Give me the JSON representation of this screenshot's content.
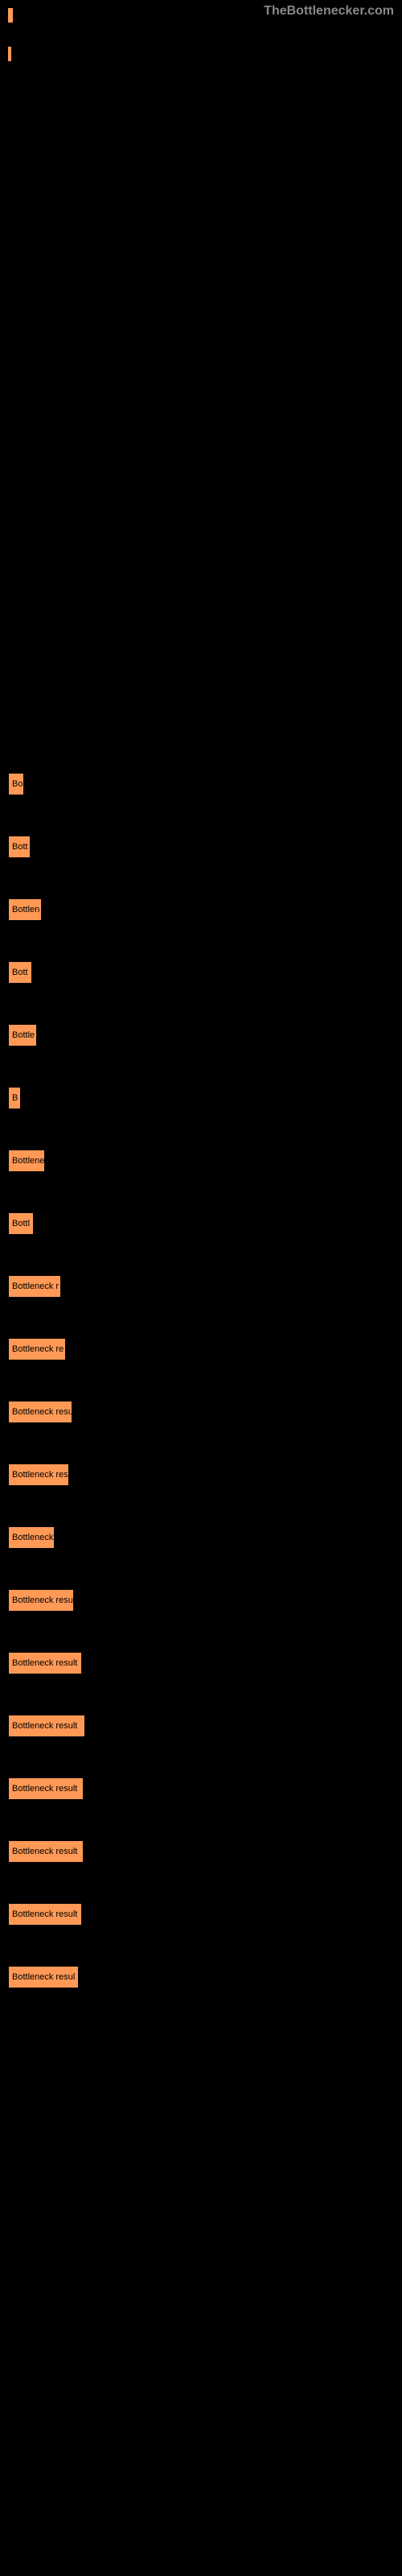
{
  "watermark": "TheBottlenecker.com",
  "top_bars": {
    "bar1_width": 6,
    "bar2_width": 4,
    "color": "#ff9955"
  },
  "chart": {
    "type": "bar",
    "orientation": "horizontal",
    "bar_color": "#ff9955",
    "text_color": "#000000",
    "background": "#000000",
    "bars": [
      {
        "label": "Bo",
        "width": 20
      },
      {
        "label": "Bott",
        "width": 28
      },
      {
        "label": "Bottlen",
        "width": 42
      },
      {
        "label": "Bott",
        "width": 30
      },
      {
        "label": "Bottle",
        "width": 36
      },
      {
        "label": "B",
        "width": 16
      },
      {
        "label": "Bottlene",
        "width": 46
      },
      {
        "label": "Bottl",
        "width": 32
      },
      {
        "label": "Bottleneck r",
        "width": 66
      },
      {
        "label": "Bottleneck re",
        "width": 72
      },
      {
        "label": "Bottleneck resu",
        "width": 80
      },
      {
        "label": "Bottleneck res",
        "width": 76
      },
      {
        "label": "Bottleneck",
        "width": 58
      },
      {
        "label": "Bottleneck resu",
        "width": 82
      },
      {
        "label": "Bottleneck result",
        "width": 92
      },
      {
        "label": "Bottleneck result",
        "width": 96
      },
      {
        "label": "Bottleneck result",
        "width": 94
      },
      {
        "label": "Bottleneck result",
        "width": 94
      },
      {
        "label": "Bottleneck result",
        "width": 92
      },
      {
        "label": "Bottleneck resul",
        "width": 88
      }
    ]
  }
}
